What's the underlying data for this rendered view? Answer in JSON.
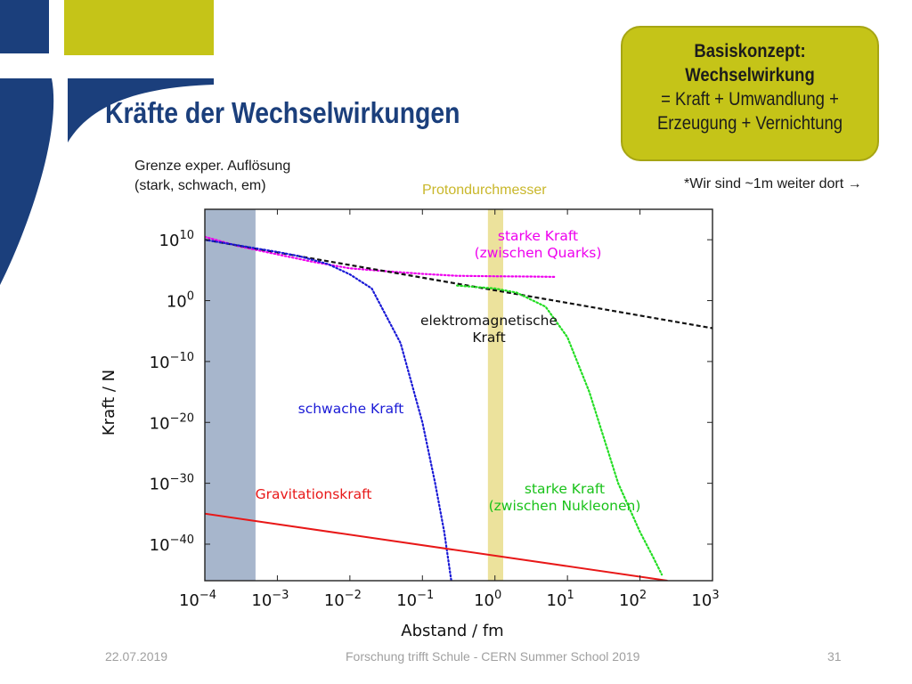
{
  "slide": {
    "title": "Kräfte der Wechselwirkungen",
    "concept_box": {
      "line1": "Basiskonzept:",
      "line2": "Wechselwirkung",
      "line3": "= Kraft + Umwandlung +",
      "line4": "Erzeugung + Vernichtung"
    },
    "note_resolution_line1": "Grenze exper. Auflösung",
    "note_resolution_line2": "(stark, schwach, em)",
    "note_protondurchmesser": "Protondurchmesser",
    "note_wir": "*Wir sind ~1m weiter dort →",
    "footer": {
      "date": "22.07.2019",
      "center": "Forschung trifft Schule - CERN Summer School 2019",
      "page": "31"
    },
    "colors": {
      "title": "#1b3f7c",
      "concept_box": "#c5c418",
      "deco_blue": "#1b3f7c",
      "deco_olive": "#c5c418"
    }
  },
  "chart_data": {
    "type": "line",
    "xlabel": "Abstand / fm",
    "ylabel": "Kraft / N",
    "xscale": "log",
    "yscale": "log",
    "xlim": [
      0.0001,
      1000
    ],
    "ylim": [
      1e-46,
      1000000000000000.0
    ],
    "x_ticks": [
      {
        "value": 0.0001,
        "base": "10",
        "exp": "−4"
      },
      {
        "value": 0.001,
        "base": "10",
        "exp": "−3"
      },
      {
        "value": 0.01,
        "base": "10",
        "exp": "−2"
      },
      {
        "value": 0.1,
        "base": "10",
        "exp": "−1"
      },
      {
        "value": 1,
        "base": "10",
        "exp": "0"
      },
      {
        "value": 10,
        "base": "10",
        "exp": "1"
      },
      {
        "value": 100,
        "base": "10",
        "exp": "2"
      },
      {
        "value": 1000,
        "base": "10",
        "exp": "3"
      }
    ],
    "y_ticks": [
      {
        "value": 10000000000.0,
        "base": "10",
        "exp": "10"
      },
      {
        "value": 1,
        "base": "10",
        "exp": "0"
      },
      {
        "value": 1e-10,
        "base": "10",
        "exp": "−10"
      },
      {
        "value": 1e-20,
        "base": "10",
        "exp": "−20"
      },
      {
        "value": 1e-30,
        "base": "10",
        "exp": "−30"
      },
      {
        "value": 1e-40,
        "base": "10",
        "exp": "−40"
      }
    ],
    "bands": [
      {
        "name": "resolution-limit",
        "x_from": 0.0001,
        "x_to": 0.0005,
        "color": "#a7b6cc"
      },
      {
        "name": "proton-diameter",
        "x_from": 0.8,
        "x_to": 1.3,
        "color": "#ece29c"
      }
    ],
    "series": [
      {
        "key": "starke-kraft-quarks",
        "label_line1": "starke Kraft",
        "label_line2": "(zwischen Quarks)",
        "color": "#ee00ee",
        "style": "dotted",
        "x": [
          0.0001,
          0.0003,
          0.001,
          0.003,
          0.01,
          0.03,
          0.1,
          0.3,
          1,
          3,
          7
        ],
        "y": [
          30000000000.0,
          800000000.0,
          40000000.0,
          2500000.0,
          200000.0,
          70000.0,
          25000.0,
          12000.0,
          10000.0,
          9000.0,
          8000.0
        ]
      },
      {
        "key": "elektromagnetische-kraft",
        "label_line1": "elektromagnetische",
        "label_line2": "Kraft",
        "color": "#111111",
        "style": "dashed",
        "x": [
          0.0001,
          1000
        ],
        "y": [
          10000000000.0,
          3e-05
        ]
      },
      {
        "key": "schwache-kraft",
        "label_line1": "schwache Kraft",
        "label_line2": "",
        "color": "#1a1ad6",
        "style": "dotted",
        "x": [
          0.0001,
          0.001,
          0.002,
          0.005,
          0.01,
          0.02,
          0.05,
          0.1,
          0.15,
          0.2,
          0.25
        ],
        "y": [
          10000000000.0,
          100000000.0,
          20000000.0,
          1000000.0,
          20000.0,
          100.0,
          1e-07,
          1e-20,
          1e-30,
          1e-38,
          1e-46
        ]
      },
      {
        "key": "starke-kraft-nukleonen",
        "label_line1": "starke Kraft",
        "label_line2": "(zwischen Nukleonen)",
        "color": "#22dd22",
        "style": "dotted",
        "x": [
          0.3,
          1,
          2,
          5,
          10,
          20,
          50,
          100,
          150,
          200
        ],
        "y": [
          300.0,
          100.0,
          20.0,
          0.1,
          1e-06,
          1e-15,
          1e-30,
          1e-38,
          1e-42,
          1e-45
        ]
      },
      {
        "key": "gravitationskraft",
        "label_line1": "Gravitationskraft",
        "label_line2": "",
        "color": "#e81818",
        "style": "solid",
        "x": [
          0.0001,
          240
        ],
        "y": [
          1e-35,
          1e-46
        ]
      }
    ]
  }
}
